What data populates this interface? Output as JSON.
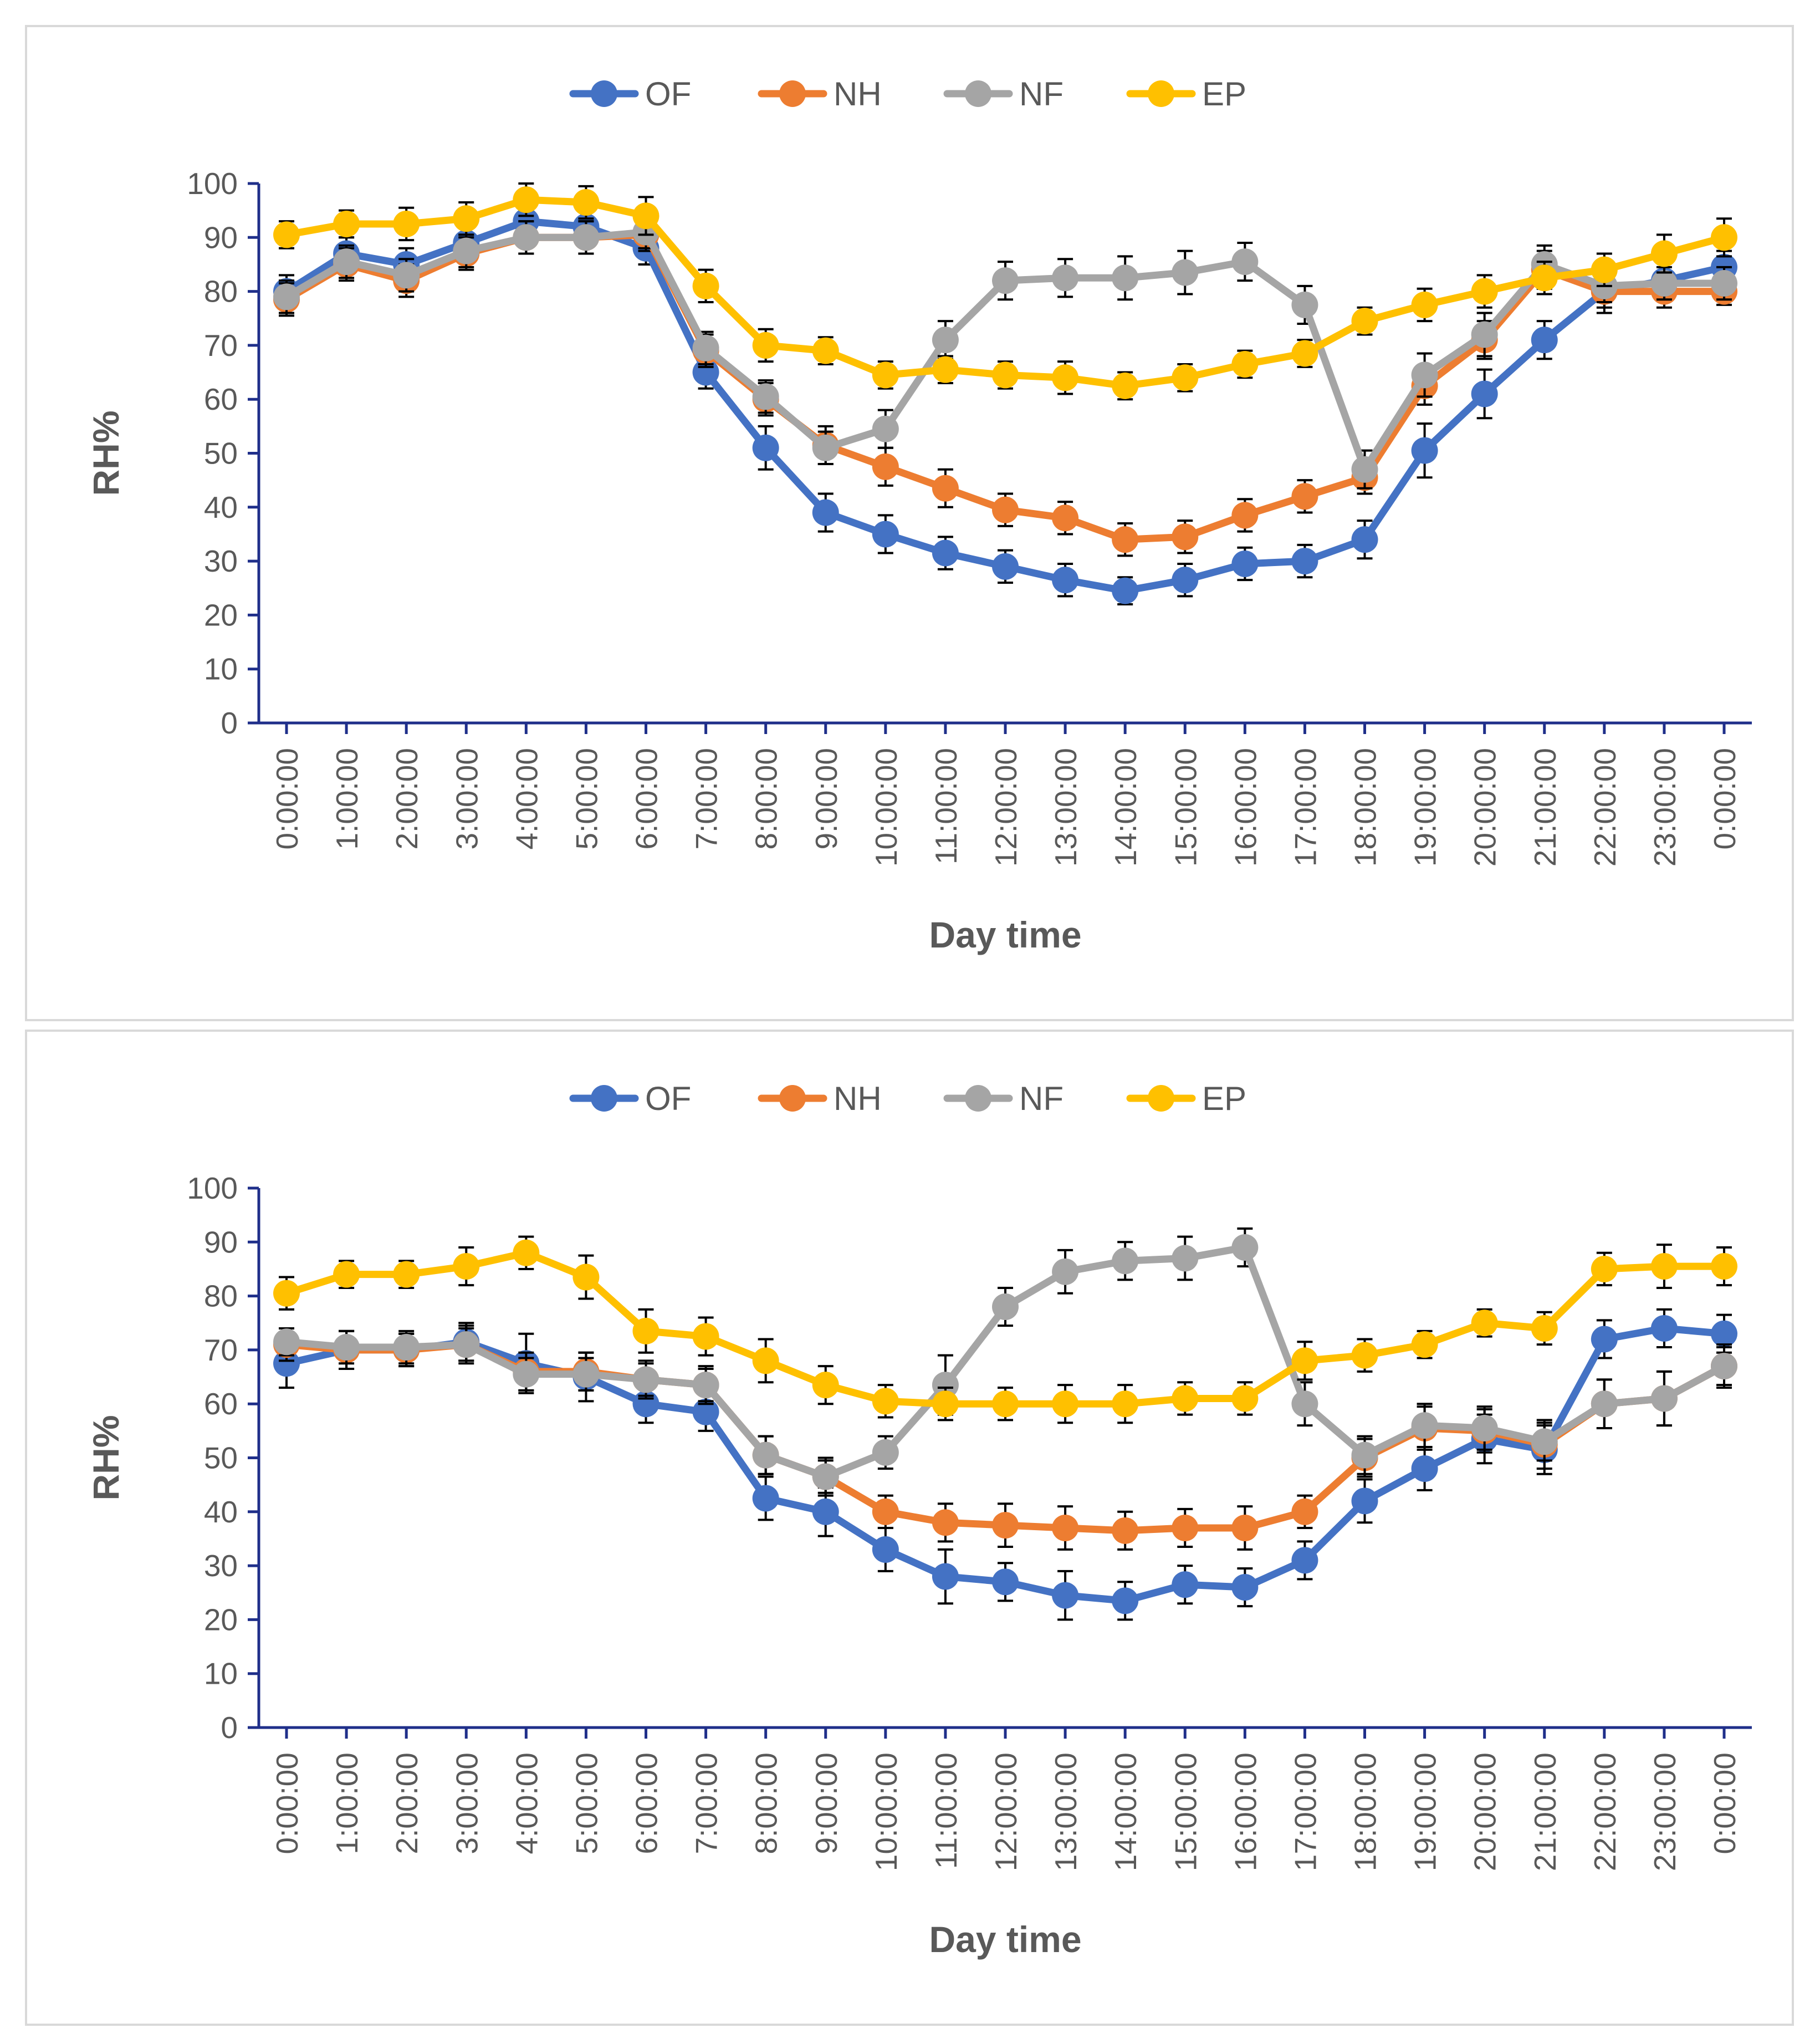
{
  "chart_data": [
    {
      "type": "line",
      "title": "",
      "xlabel": "Day time",
      "ylabel": "RH%",
      "ylabel_bold": false,
      "ylim": [
        0,
        100
      ],
      "yticks": [
        0,
        10,
        20,
        30,
        40,
        50,
        60,
        70,
        80,
        90,
        100
      ],
      "legend_position": "top-center",
      "grid": false,
      "categories": [
        "0:00:00",
        "1:00:00",
        "2:00:00",
        "3:00:00",
        "4:00:00",
        "5:00:00",
        "6:00:00",
        "7:00:00",
        "8:00:00",
        "9:00:00",
        "10:00:00",
        "11:00:00",
        "12:00:00",
        "13:00:00",
        "14:00:00",
        "15:00:00",
        "16:00:00",
        "17:00:00",
        "18:00:00",
        "19:00:00",
        "20:00:00",
        "21:00:00",
        "22:00:00",
        "23:00:00",
        "0:00:00"
      ],
      "series": [
        {
          "name": "OF",
          "color": "#4472C4",
          "values": [
            80,
            87,
            85,
            89,
            93,
            92,
            88,
            65,
            51,
            39,
            35,
            31.5,
            29,
            26.5,
            24.5,
            26.5,
            29.5,
            30,
            34,
            50.5,
            61,
            71,
            80,
            82,
            84.5
          ],
          "errors": [
            3,
            3,
            3,
            3,
            3,
            3,
            3,
            3,
            4,
            3.5,
            3.5,
            3,
            3,
            3,
            2.5,
            3,
            3,
            3,
            3.5,
            5,
            4.5,
            3.5,
            4,
            3.5,
            3
          ]
        },
        {
          "name": "NH",
          "color": "#ED7D31",
          "values": [
            78.5,
            85,
            82,
            87,
            90,
            90,
            90.5,
            69,
            60,
            51.5,
            47.5,
            43.5,
            39.5,
            38,
            34,
            34.5,
            38.5,
            42,
            45.5,
            62.5,
            71,
            84,
            80,
            80,
            80
          ],
          "errors": [
            3,
            3,
            3,
            3,
            3,
            3,
            3,
            3,
            3,
            3.5,
            3.5,
            3.5,
            3,
            3,
            3,
            3,
            3,
            3,
            3,
            3.5,
            3.5,
            3.5,
            3,
            3,
            2.5
          ]
        },
        {
          "name": "NF",
          "color": "#A5A5A5",
          "values": [
            79,
            85.5,
            83,
            87.5,
            90,
            90,
            91,
            69.5,
            60.5,
            51,
            54.5,
            71,
            82,
            82.5,
            82.5,
            83.5,
            85.5,
            77.5,
            47,
            64.5,
            72,
            85,
            81,
            81.5,
            81.5
          ],
          "errors": [
            3,
            3,
            3,
            3,
            3,
            3,
            3,
            3,
            3,
            3,
            3.5,
            3.5,
            3.5,
            3.5,
            4,
            4,
            3.5,
            3.5,
            3.5,
            4,
            4,
            3.5,
            3,
            3,
            3
          ]
        },
        {
          "name": "EP",
          "color": "#FFC000",
          "values": [
            90.5,
            92.5,
            92.5,
            93.5,
            97,
            96.5,
            94,
            81,
            70,
            69,
            64.5,
            65.5,
            64.5,
            64,
            62.5,
            64,
            66.5,
            68.5,
            74.5,
            77.5,
            80,
            82.5,
            84,
            87,
            90
          ],
          "errors": [
            2.5,
            2.5,
            3,
            3,
            3,
            3,
            3.5,
            3,
            3,
            2.5,
            2.5,
            2.5,
            2.5,
            3,
            2.5,
            2.5,
            2.5,
            2.5,
            2.5,
            3,
            3,
            3,
            3,
            3.5,
            3.5
          ]
        }
      ]
    },
    {
      "type": "line",
      "title": "",
      "xlabel": "Day time",
      "ylabel": "RH%",
      "ylabel_bold": true,
      "ylim": [
        0,
        100
      ],
      "yticks": [
        0,
        10,
        20,
        30,
        40,
        50,
        60,
        70,
        80,
        90,
        100
      ],
      "legend_position": "top-center",
      "grid": false,
      "categories": [
        "0:00:00",
        "1:00:00",
        "2:00:00",
        "3:00:00",
        "4:00:00",
        "5:00:00",
        "6:00:00",
        "7:00:00",
        "8:00:00",
        "9:00:00",
        "10:00:00",
        "11:00:00",
        "12:00:00",
        "13:00:00",
        "14:00:00",
        "15:00:00",
        "16:00:00",
        "17:00:00",
        "18:00:00",
        "19:00:00",
        "20:00:00",
        "21:00:00",
        "22:00:00",
        "23:00:00",
        "0:00:00"
      ],
      "series": [
        {
          "name": "OF",
          "color": "#4472C4",
          "values": [
            67.5,
            70,
            70,
            71.5,
            67.5,
            65,
            60,
            58.5,
            42.5,
            40,
            33,
            28,
            27,
            24.5,
            23.5,
            26.5,
            26,
            31,
            42,
            48,
            53.5,
            51.5,
            72,
            74,
            73
          ],
          "errors": [
            4.5,
            3.5,
            3,
            3.5,
            5.5,
            4.5,
            3.5,
            3.5,
            4,
            4.5,
            4,
            5,
            3.5,
            4.5,
            3.5,
            3.5,
            3.5,
            3.5,
            4,
            4,
            4.5,
            4.5,
            3.5,
            3.5,
            3.5
          ]
        },
        {
          "name": "NH",
          "color": "#ED7D31",
          "values": [
            71,
            70,
            70,
            71,
            66,
            66,
            64.5,
            63.5,
            50.5,
            46.5,
            40,
            38,
            37.5,
            37,
            36.5,
            37,
            37,
            40,
            50,
            55.5,
            55,
            52.5,
            60,
            61,
            67
          ],
          "errors": [
            3,
            3.5,
            3,
            3.5,
            3.5,
            3.5,
            3.5,
            3.5,
            3.5,
            3,
            3,
            3.5,
            4,
            4,
            3.5,
            3.5,
            4,
            3,
            3.5,
            4,
            4,
            4.5,
            4.5,
            5,
            3.5
          ]
        },
        {
          "name": "NF",
          "color": "#A5A5A5",
          "values": [
            71.5,
            70.5,
            70.5,
            71,
            65.5,
            65.5,
            64.5,
            63.5,
            50.5,
            46.5,
            51,
            63.5,
            78,
            84.5,
            86.5,
            87,
            89,
            60,
            50.5,
            56,
            55.5,
            53,
            60,
            61,
            67
          ],
          "errors": [
            2.5,
            3,
            3,
            3,
            3,
            3,
            3,
            3,
            3.5,
            3.5,
            3,
            5.5,
            3.5,
            4,
            3.5,
            4,
            3.5,
            4,
            3.5,
            4,
            4,
            3.5,
            4.5,
            5,
            4
          ]
        },
        {
          "name": "EP",
          "color": "#FFC000",
          "values": [
            80.5,
            84,
            84,
            85.5,
            88,
            83.5,
            73.5,
            72.5,
            68,
            63.5,
            60.5,
            60,
            60,
            60,
            60,
            61,
            61,
            68,
            69,
            71,
            75,
            74,
            85,
            85.5,
            85.5
          ],
          "errors": [
            3,
            2.5,
            2.5,
            3.5,
            3,
            4,
            4,
            3.5,
            4,
            3.5,
            3,
            3,
            3,
            3.5,
            3.5,
            3,
            3,
            3.5,
            3,
            2.5,
            2.5,
            3,
            3,
            4,
            3.5
          ]
        }
      ]
    }
  ]
}
